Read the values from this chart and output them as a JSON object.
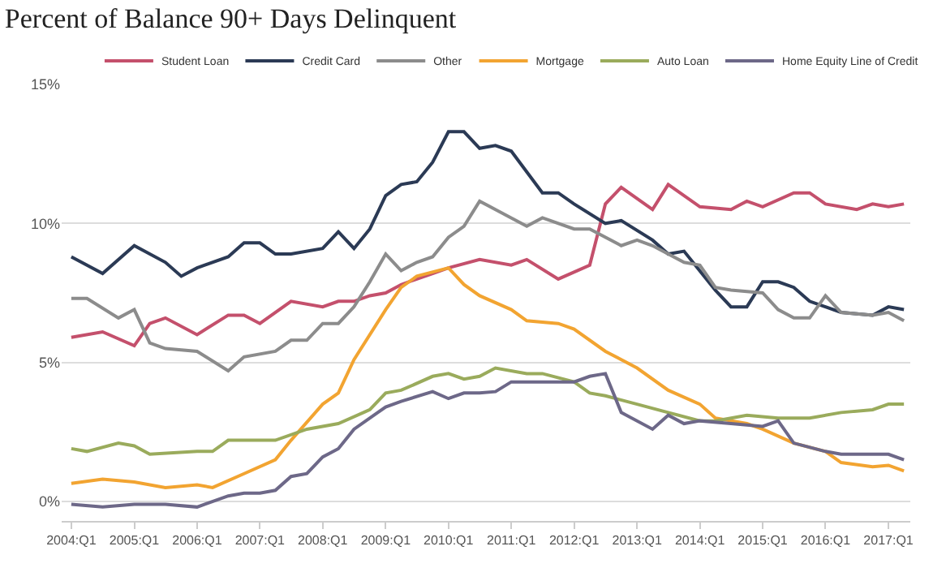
{
  "chart_data": {
    "type": "line",
    "title": "Percent of Balance 90+ Days Delinquent",
    "series": [
      {
        "name": "Student Loan",
        "color": "#c4506c",
        "x": [
          "2004-01",
          "2004-07",
          "2005-01",
          "2005-04",
          "2005-07",
          "2006-01",
          "2006-07",
          "2006-10",
          "2007-01",
          "2007-07",
          "2008-01",
          "2008-04",
          "2008-07",
          "2008-10",
          "2009-01",
          "2009-04",
          "2009-10",
          "2010-01",
          "2010-07",
          "2011-01",
          "2011-04",
          "2011-10",
          "2012-04",
          "2012-07",
          "2012-10",
          "2013-04",
          "2013-07",
          "2014-01",
          "2014-07",
          "2014-10",
          "2015-01",
          "2015-07",
          "2015-10",
          "2016-01",
          "2016-07",
          "2016-10",
          "2017-01",
          "2017-04"
        ],
        "values": [
          5.9,
          6.1,
          5.6,
          6.4,
          6.6,
          6.0,
          6.7,
          6.7,
          6.4,
          7.2,
          7.0,
          7.2,
          7.2,
          7.4,
          7.5,
          7.8,
          8.2,
          8.4,
          8.7,
          8.5,
          8.7,
          8.0,
          8.5,
          10.7,
          11.3,
          10.5,
          11.4,
          10.6,
          10.5,
          10.8,
          10.6,
          11.1,
          11.1,
          10.7,
          10.5,
          10.7,
          10.6,
          10.7
        ]
      },
      {
        "name": "Credit Card",
        "color": "#2b3a55",
        "x": [
          "2004-01",
          "2004-07",
          "2005-01",
          "2005-07",
          "2005-10",
          "2006-01",
          "2006-07",
          "2006-10",
          "2007-01",
          "2007-04",
          "2007-07",
          "2008-01",
          "2008-04",
          "2008-07",
          "2008-10",
          "2009-01",
          "2009-04",
          "2009-07",
          "2009-10",
          "2010-01",
          "2010-04",
          "2010-07",
          "2010-10",
          "2011-01",
          "2011-07",
          "2011-10",
          "2012-01",
          "2012-07",
          "2012-10",
          "2013-04",
          "2013-07",
          "2013-10",
          "2014-04",
          "2014-07",
          "2014-10",
          "2015-01",
          "2015-04",
          "2015-07",
          "2015-10",
          "2016-04",
          "2016-10",
          "2017-01",
          "2017-04"
        ],
        "values": [
          8.8,
          8.2,
          9.2,
          8.6,
          8.1,
          8.4,
          8.8,
          9.3,
          9.3,
          8.9,
          8.9,
          9.1,
          9.7,
          9.1,
          9.8,
          11.0,
          11.4,
          11.5,
          12.2,
          13.3,
          13.3,
          12.7,
          12.8,
          12.6,
          11.1,
          11.1,
          10.7,
          10.0,
          10.1,
          9.4,
          8.9,
          9.0,
          7.6,
          7.0,
          7.0,
          7.9,
          7.9,
          7.7,
          7.2,
          6.8,
          6.7,
          7.0,
          6.9
        ]
      },
      {
        "name": "Other",
        "color": "#8c8c8c",
        "x": [
          "2004-01",
          "2004-04",
          "2004-10",
          "2005-01",
          "2005-04",
          "2005-07",
          "2006-01",
          "2006-07",
          "2006-10",
          "2007-04",
          "2007-07",
          "2007-10",
          "2008-01",
          "2008-04",
          "2008-07",
          "2008-10",
          "2009-01",
          "2009-04",
          "2009-07",
          "2009-10",
          "2010-01",
          "2010-04",
          "2010-07",
          "2010-10",
          "2011-04",
          "2011-07",
          "2012-01",
          "2012-04",
          "2012-10",
          "2013-01",
          "2013-04",
          "2013-10",
          "2014-01",
          "2014-04",
          "2014-07",
          "2015-01",
          "2015-04",
          "2015-07",
          "2015-10",
          "2016-01",
          "2016-04",
          "2016-10",
          "2017-01",
          "2017-04"
        ],
        "values": [
          7.3,
          7.3,
          6.6,
          6.9,
          5.7,
          5.5,
          5.4,
          4.7,
          5.2,
          5.4,
          5.8,
          5.8,
          6.4,
          6.4,
          7.0,
          7.9,
          8.9,
          8.3,
          8.6,
          8.8,
          9.5,
          9.9,
          10.8,
          10.5,
          9.9,
          10.2,
          9.8,
          9.8,
          9.2,
          9.4,
          9.2,
          8.6,
          8.5,
          7.7,
          7.6,
          7.5,
          6.9,
          6.6,
          6.6,
          7.4,
          6.8,
          6.7,
          6.8,
          6.5
        ]
      },
      {
        "name": "Mortgage",
        "color": "#f2a431",
        "x": [
          "2004-01",
          "2004-07",
          "2005-01",
          "2005-07",
          "2006-01",
          "2006-04",
          "2006-10",
          "2007-04",
          "2007-07",
          "2008-01",
          "2008-04",
          "2008-07",
          "2009-01",
          "2009-04",
          "2009-07",
          "2010-01",
          "2010-04",
          "2010-07",
          "2011-01",
          "2011-04",
          "2011-10",
          "2012-01",
          "2012-07",
          "2013-01",
          "2013-07",
          "2014-01",
          "2014-04",
          "2014-10",
          "2015-01",
          "2015-07",
          "2016-01",
          "2016-04",
          "2016-10",
          "2017-01",
          "2017-04"
        ],
        "values": [
          0.65,
          0.8,
          0.7,
          0.5,
          0.6,
          0.5,
          1.0,
          1.5,
          2.2,
          3.5,
          3.9,
          5.1,
          6.9,
          7.7,
          8.1,
          8.4,
          7.8,
          7.4,
          6.9,
          6.5,
          6.4,
          6.2,
          5.4,
          4.8,
          4.0,
          3.5,
          3.0,
          2.8,
          2.6,
          2.1,
          1.8,
          1.4,
          1.25,
          1.3,
          1.1
        ]
      },
      {
        "name": "Auto Loan",
        "color": "#9aab5c",
        "x": [
          "2004-01",
          "2004-04",
          "2004-10",
          "2005-01",
          "2005-04",
          "2006-01",
          "2006-04",
          "2006-07",
          "2007-01",
          "2007-04",
          "2007-10",
          "2008-04",
          "2008-10",
          "2009-01",
          "2009-04",
          "2009-10",
          "2010-01",
          "2010-04",
          "2010-07",
          "2010-10",
          "2011-04",
          "2011-07",
          "2012-01",
          "2012-04",
          "2012-07",
          "2013-01",
          "2013-07",
          "2014-01",
          "2014-04",
          "2014-10",
          "2015-04",
          "2015-10",
          "2016-04",
          "2016-10",
          "2017-01",
          "2017-04"
        ],
        "values": [
          1.9,
          1.8,
          2.1,
          2.0,
          1.7,
          1.8,
          1.8,
          2.2,
          2.2,
          2.2,
          2.6,
          2.8,
          3.3,
          3.9,
          4.0,
          4.5,
          4.6,
          4.4,
          4.5,
          4.8,
          4.6,
          4.6,
          4.3,
          3.9,
          3.8,
          3.5,
          3.2,
          2.9,
          2.9,
          3.1,
          3.0,
          3.0,
          3.2,
          3.3,
          3.5,
          3.5
        ]
      },
      {
        "name": "Home Equity Line of Credit",
        "color": "#6d6888",
        "x": [
          "2004-01",
          "2004-07",
          "2005-01",
          "2005-07",
          "2006-01",
          "2006-07",
          "2006-10",
          "2007-01",
          "2007-04",
          "2007-07",
          "2007-10",
          "2008-01",
          "2008-04",
          "2008-07",
          "2009-01",
          "2009-04",
          "2009-10",
          "2010-01",
          "2010-04",
          "2010-07",
          "2010-10",
          "2011-01",
          "2011-10",
          "2012-01",
          "2012-04",
          "2012-07",
          "2012-10",
          "2013-04",
          "2013-07",
          "2013-10",
          "2014-01",
          "2014-07",
          "2015-01",
          "2015-04",
          "2015-07",
          "2016-01",
          "2016-04",
          "2016-07",
          "2017-01",
          "2017-04"
        ],
        "values": [
          -0.1,
          -0.2,
          -0.1,
          -0.1,
          -0.2,
          0.2,
          0.3,
          0.3,
          0.4,
          0.9,
          1.0,
          1.6,
          1.9,
          2.6,
          3.4,
          3.6,
          3.95,
          3.7,
          3.9,
          3.9,
          3.95,
          4.3,
          4.3,
          4.3,
          4.5,
          4.6,
          3.2,
          2.6,
          3.1,
          2.8,
          2.9,
          2.8,
          2.7,
          2.9,
          2.1,
          1.8,
          1.7,
          1.7,
          1.7,
          1.5
        ]
      }
    ],
    "xlim": [
      "2003-11-06",
      "2017-05-08"
    ],
    "xticks": [
      {
        "value": "2004-01",
        "label": "2004:Q1"
      },
      {
        "value": "2005-01",
        "label": "2005:Q1"
      },
      {
        "value": "2006-01",
        "label": "2006:Q1"
      },
      {
        "value": "2007-01",
        "label": "2007:Q1"
      },
      {
        "value": "2008-01",
        "label": "2008:Q1"
      },
      {
        "value": "2009-01",
        "label": "2009:Q1"
      },
      {
        "value": "2010-01",
        "label": "2010:Q1"
      },
      {
        "value": "2011-01",
        "label": "2011:Q1"
      },
      {
        "value": "2012-01",
        "label": "2012:Q1"
      },
      {
        "value": "2013-01",
        "label": "2013:Q1"
      },
      {
        "value": "2014-01",
        "label": "2014:Q1"
      },
      {
        "value": "2015-01",
        "label": "2015:Q1"
      },
      {
        "value": "2016-01",
        "label": "2016:Q1"
      },
      {
        "value": "2017-01",
        "label": "2017:Q1"
      }
    ],
    "ylim": [
      -0.7,
      15
    ],
    "yticks": [
      {
        "value": 0,
        "label": "0%"
      },
      {
        "value": 5,
        "label": "5%"
      },
      {
        "value": 10,
        "label": "10%"
      },
      {
        "value": 15,
        "label": "15%"
      }
    ],
    "grid": "y",
    "legend": "top right",
    "marker": "none",
    "line_style": "solid"
  }
}
